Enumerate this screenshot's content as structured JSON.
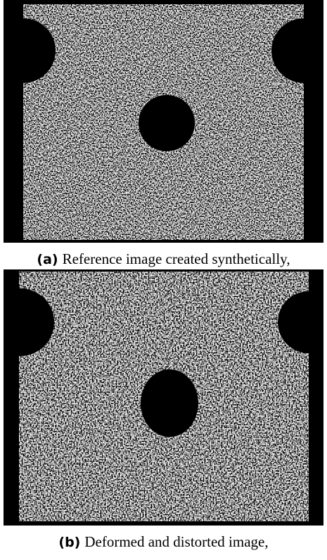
{
  "figures": [
    {
      "label": "(a)",
      "caption": "Reference image created synthetically,"
    },
    {
      "label": "(b)",
      "caption": "Deformed and distorted image,"
    }
  ]
}
